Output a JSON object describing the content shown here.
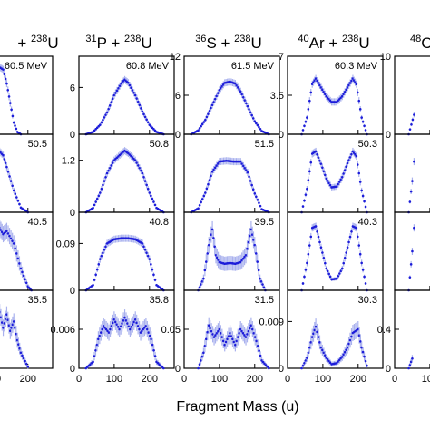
{
  "figure": {
    "xlabel": "Fragment Mass (u)",
    "xticks": [
      0,
      100,
      200
    ],
    "xlim": [
      0,
      270
    ],
    "reactions": [
      {
        "projectile_mass": "",
        "projectile": "",
        "target_mass": "238",
        "target": "U"
      },
      {
        "projectile_mass": "31",
        "projectile": "P",
        "target_mass": "238",
        "target": "U"
      },
      {
        "projectile_mass": "36",
        "projectile": "S",
        "target_mass": "238",
        "target": "U"
      },
      {
        "projectile_mass": "40",
        "projectile": "Ar",
        "target_mass": "238",
        "target": "U"
      },
      {
        "projectile_mass": "48",
        "projectile": "C",
        "target_mass": "",
        "target": ""
      }
    ]
  },
  "colors": {
    "points": "#1c1cd9",
    "errorbars": "#aab2ee",
    "axes": "#000000"
  },
  "chart_data": [
    {
      "type": "scatter",
      "column": 0,
      "row": 0,
      "energy_label": "60.5 MeV",
      "yticks": [],
      "ylim": [
        0,
        10
      ],
      "points": [
        [
          60,
          0.4
        ],
        [
          80,
          2.0
        ],
        [
          90,
          4.8
        ],
        [
          100,
          7.5
        ],
        [
          110,
          8.4
        ],
        [
          120,
          8.6
        ],
        [
          130,
          8.3
        ],
        [
          140,
          6.5
        ],
        [
          150,
          4.0
        ],
        [
          160,
          1.5
        ],
        [
          170,
          0.3
        ],
        [
          180,
          0
        ]
      ]
    },
    {
      "type": "scatter",
      "column": 0,
      "row": 1,
      "energy_label": "50.5",
      "yticks": [],
      "ylim": [
        0,
        10
      ],
      "points": [
        [
          40,
          0
        ],
        [
          60,
          1.0
        ],
        [
          80,
          3.5
        ],
        [
          100,
          6.5
        ],
        [
          110,
          7.6
        ],
        [
          120,
          7.8
        ],
        [
          130,
          7.3
        ],
        [
          140,
          5.8
        ],
        [
          160,
          2.8
        ],
        [
          180,
          0.6
        ],
        [
          200,
          0
        ]
      ]
    },
    {
      "type": "scatter",
      "column": 0,
      "row": 2,
      "energy_label": "40.5",
      "yticks": [],
      "ylim": [
        0,
        10
      ],
      "points": [
        [
          40,
          0.3
        ],
        [
          60,
          2.5
        ],
        [
          80,
          6.0
        ],
        [
          100,
          7.8
        ],
        [
          110,
          7.0
        ],
        [
          120,
          8.0
        ],
        [
          130,
          7.2
        ],
        [
          140,
          7.6
        ],
        [
          160,
          6.0
        ],
        [
          180,
          2.8
        ],
        [
          200,
          0.5
        ],
        [
          210,
          0
        ]
      ]
    },
    {
      "type": "scatter",
      "column": 0,
      "row": 3,
      "energy_label": "35.5",
      "yticks": [],
      "ylim": [
        0,
        10
      ],
      "points": [
        [
          40,
          1.0
        ],
        [
          60,
          3.5
        ],
        [
          80,
          6.0
        ],
        [
          90,
          5.0
        ],
        [
          100,
          6.8
        ],
        [
          110,
          4.6
        ],
        [
          120,
          7.2
        ],
        [
          130,
          5.2
        ],
        [
          140,
          6.9
        ],
        [
          150,
          4.8
        ],
        [
          160,
          6.0
        ],
        [
          170,
          3.6
        ],
        [
          180,
          2.0
        ],
        [
          200,
          0.2
        ]
      ]
    },
    {
      "type": "scatter",
      "column": 1,
      "row": 0,
      "energy_label": "60.8 MeV",
      "yticks": [
        {
          "value": 0,
          "label": "0"
        },
        {
          "value": 6,
          "label": "6"
        }
      ],
      "ylim": [
        0,
        10
      ],
      "points": [
        [
          20,
          0
        ],
        [
          40,
          0.3
        ],
        [
          60,
          1.2
        ],
        [
          80,
          2.8
        ],
        [
          100,
          5.0
        ],
        [
          120,
          6.5
        ],
        [
          130,
          7.0
        ],
        [
          140,
          6.6
        ],
        [
          160,
          5.0
        ],
        [
          180,
          2.9
        ],
        [
          200,
          1.2
        ],
        [
          220,
          0.3
        ],
        [
          240,
          0
        ]
      ]
    },
    {
      "type": "scatter",
      "column": 1,
      "row": 1,
      "energy_label": "50.8",
      "yticks": [
        {
          "value": 0,
          "label": "0"
        },
        {
          "value": 1.2,
          "label": "1.2"
        }
      ],
      "ylim": [
        0,
        1.8
      ],
      "points": [
        [
          20,
          0
        ],
        [
          40,
          0.1
        ],
        [
          60,
          0.45
        ],
        [
          80,
          0.9
        ],
        [
          100,
          1.2
        ],
        [
          120,
          1.35
        ],
        [
          130,
          1.42
        ],
        [
          140,
          1.36
        ],
        [
          160,
          1.2
        ],
        [
          180,
          0.9
        ],
        [
          200,
          0.45
        ],
        [
          220,
          0.1
        ],
        [
          240,
          0
        ]
      ]
    },
    {
      "type": "scatter",
      "column": 1,
      "row": 2,
      "energy_label": "40.8",
      "yticks": [
        {
          "value": 0,
          "label": "0"
        },
        {
          "value": 0.09,
          "label": "0.09"
        }
      ],
      "ylim": [
        0,
        0.15
      ],
      "points": [
        [
          20,
          0
        ],
        [
          40,
          0.01
        ],
        [
          60,
          0.06
        ],
        [
          80,
          0.09
        ],
        [
          100,
          0.098
        ],
        [
          120,
          0.1
        ],
        [
          140,
          0.1
        ],
        [
          160,
          0.098
        ],
        [
          180,
          0.09
        ],
        [
          200,
          0.06
        ],
        [
          220,
          0.01
        ],
        [
          240,
          0
        ]
      ]
    },
    {
      "type": "scatter",
      "column": 1,
      "row": 3,
      "energy_label": "35.8",
      "yticks": [
        {
          "value": 0,
          "label": "0"
        },
        {
          "value": 0.006,
          "label": "0.006"
        }
      ],
      "ylim": [
        0,
        0.012
      ],
      "points": [
        [
          20,
          0
        ],
        [
          40,
          0.001
        ],
        [
          55,
          0.0045
        ],
        [
          70,
          0.0065
        ],
        [
          85,
          0.0055
        ],
        [
          100,
          0.0075
        ],
        [
          115,
          0.006
        ],
        [
          130,
          0.0078
        ],
        [
          145,
          0.006
        ],
        [
          160,
          0.0075
        ],
        [
          175,
          0.0055
        ],
        [
          190,
          0.0065
        ],
        [
          205,
          0.0045
        ],
        [
          220,
          0.001
        ],
        [
          240,
          0
        ]
      ]
    },
    {
      "type": "scatter",
      "column": 2,
      "row": 0,
      "energy_label": "61.5 MeV",
      "yticks": [
        {
          "value": 0,
          "label": "0"
        },
        {
          "value": 6,
          "label": "6"
        },
        {
          "value": 12,
          "label": "12"
        }
      ],
      "ylim": [
        0,
        12
      ],
      "points": [
        [
          20,
          0
        ],
        [
          40,
          0.6
        ],
        [
          60,
          2.2
        ],
        [
          80,
          4.5
        ],
        [
          100,
          6.8
        ],
        [
          115,
          7.9
        ],
        [
          130,
          8.1
        ],
        [
          145,
          7.8
        ],
        [
          160,
          6.6
        ],
        [
          180,
          4.3
        ],
        [
          200,
          2.0
        ],
        [
          220,
          0.5
        ],
        [
          240,
          0
        ]
      ]
    },
    {
      "type": "scatter",
      "column": 2,
      "row": 1,
      "energy_label": "51.5",
      "yticks": [],
      "ylim": [
        0,
        10
      ],
      "points": [
        [
          20,
          0
        ],
        [
          40,
          0.5
        ],
        [
          60,
          2.5
        ],
        [
          80,
          5.2
        ],
        [
          100,
          6.5
        ],
        [
          120,
          6.6
        ],
        [
          140,
          6.5
        ],
        [
          160,
          6.5
        ],
        [
          180,
          5.1
        ],
        [
          200,
          2.4
        ],
        [
          220,
          0.4
        ],
        [
          240,
          0
        ]
      ]
    },
    {
      "type": "scatter",
      "column": 2,
      "row": 2,
      "energy_label": "39.5",
      "yticks": [],
      "ylim": [
        0,
        10
      ],
      "points": [
        [
          40,
          0
        ],
        [
          55,
          1.5
        ],
        [
          70,
          5.8
        ],
        [
          80,
          7.8
        ],
        [
          90,
          4.5
        ],
        [
          100,
          3.6
        ],
        [
          115,
          3.4
        ],
        [
          130,
          3.5
        ],
        [
          145,
          3.4
        ],
        [
          160,
          3.6
        ],
        [
          175,
          4.5
        ],
        [
          190,
          7.8
        ],
        [
          200,
          5.8
        ],
        [
          215,
          1.5
        ],
        [
          230,
          0
        ]
      ]
    },
    {
      "type": "scatter",
      "column": 2,
      "row": 3,
      "energy_label": "31.5",
      "yticks": [
        {
          "value": 0,
          "label": "0"
        },
        {
          "value": 0.05,
          "label": "0.05"
        }
      ],
      "ylim": [
        0,
        0.1
      ],
      "points": [
        [
          40,
          0
        ],
        [
          55,
          0.02
        ],
        [
          70,
          0.055
        ],
        [
          85,
          0.04
        ],
        [
          100,
          0.05
        ],
        [
          115,
          0.03
        ],
        [
          130,
          0.045
        ],
        [
          145,
          0.03
        ],
        [
          160,
          0.05
        ],
        [
          175,
          0.04
        ],
        [
          190,
          0.055
        ],
        [
          205,
          0.035
        ],
        [
          220,
          0.01
        ],
        [
          240,
          0
        ]
      ]
    },
    {
      "type": "scatter",
      "column": 3,
      "row": 0,
      "energy_label": "60.3 MeV",
      "yticks": [
        {
          "value": 0,
          "label": "0"
        },
        {
          "value": 3.5,
          "label": "3.5"
        },
        {
          "value": 7,
          "label": "7"
        }
      ],
      "ylim": [
        0,
        7
      ],
      "points": [
        [
          40,
          0
        ],
        [
          55,
          1.5
        ],
        [
          70,
          4.5
        ],
        [
          80,
          5.0
        ],
        [
          95,
          4.2
        ],
        [
          110,
          3.4
        ],
        [
          125,
          2.9
        ],
        [
          140,
          2.9
        ],
        [
          155,
          3.4
        ],
        [
          170,
          4.2
        ],
        [
          185,
          5.0
        ],
        [
          195,
          4.5
        ],
        [
          210,
          1.5
        ],
        [
          225,
          0
        ]
      ]
    },
    {
      "type": "scatter",
      "column": 3,
      "row": 1,
      "energy_label": "50.3",
      "yticks": [],
      "ylim": [
        0,
        10
      ],
      "points": [
        [
          40,
          0
        ],
        [
          55,
          3.0
        ],
        [
          70,
          7.5
        ],
        [
          80,
          7.8
        ],
        [
          95,
          6.2
        ],
        [
          110,
          4.3
        ],
        [
          125,
          3.2
        ],
        [
          140,
          3.3
        ],
        [
          155,
          4.5
        ],
        [
          170,
          6.3
        ],
        [
          185,
          7.8
        ],
        [
          195,
          7.2
        ],
        [
          210,
          2.8
        ],
        [
          225,
          0
        ]
      ]
    },
    {
      "type": "scatter",
      "column": 3,
      "row": 2,
      "energy_label": "40.3",
      "yticks": [],
      "ylim": [
        0,
        10
      ],
      "points": [
        [
          40,
          0
        ],
        [
          55,
          3.5
        ],
        [
          70,
          8.0
        ],
        [
          80,
          8.2
        ],
        [
          95,
          5.5
        ],
        [
          110,
          2.8
        ],
        [
          125,
          1.4
        ],
        [
          140,
          1.5
        ],
        [
          155,
          2.8
        ],
        [
          170,
          5.5
        ],
        [
          185,
          8.2
        ],
        [
          195,
          8.0
        ],
        [
          210,
          3.5
        ],
        [
          225,
          0
        ]
      ]
    },
    {
      "type": "scatter",
      "column": 3,
      "row": 3,
      "energy_label": "30.3",
      "yticks": [
        {
          "value": 0,
          "label": "0"
        },
        {
          "value": 0.009,
          "label": "0.009"
        }
      ],
      "ylim": [
        0,
        0.015
      ],
      "points": [
        [
          40,
          0
        ],
        [
          55,
          0.002
        ],
        [
          70,
          0.006
        ],
        [
          80,
          0.008
        ],
        [
          95,
          0.004
        ],
        [
          110,
          0.002
        ],
        [
          125,
          0.0008
        ],
        [
          140,
          0.001
        ],
        [
          155,
          0.0022
        ],
        [
          170,
          0.004
        ],
        [
          185,
          0.0068
        ],
        [
          200,
          0.0075
        ],
        [
          210,
          0.004
        ],
        [
          225,
          0.0005
        ]
      ]
    },
    {
      "type": "scatter",
      "column": 4,
      "row": 0,
      "energy_label": "",
      "yticks": [
        {
          "value": 0,
          "label": "0"
        },
        {
          "value": 10,
          "label": "10"
        }
      ],
      "ylim": [
        0,
        10
      ],
      "points": [
        [
          40,
          0
        ],
        [
          55,
          2.5
        ]
      ]
    },
    {
      "type": "scatter",
      "column": 4,
      "row": 1,
      "energy_label": "",
      "yticks": [],
      "ylim": [
        0,
        10
      ],
      "points": [
        [
          40,
          0
        ],
        [
          50,
          4.0
        ],
        [
          55,
          6.5
        ]
      ]
    },
    {
      "type": "scatter",
      "column": 4,
      "row": 2,
      "energy_label": "",
      "yticks": [],
      "ylim": [
        0,
        10
      ],
      "points": [
        [
          40,
          0
        ],
        [
          50,
          5.0
        ],
        [
          55,
          8.0
        ]
      ]
    },
    {
      "type": "scatter",
      "column": 4,
      "row": 3,
      "energy_label": "",
      "yticks": [
        {
          "value": 0,
          "label": "0"
        },
        {
          "value": 0.4,
          "label": "0.4"
        }
      ],
      "ylim": [
        0,
        0.8
      ],
      "points": [
        [
          40,
          0
        ],
        [
          50,
          0.1
        ]
      ]
    }
  ]
}
